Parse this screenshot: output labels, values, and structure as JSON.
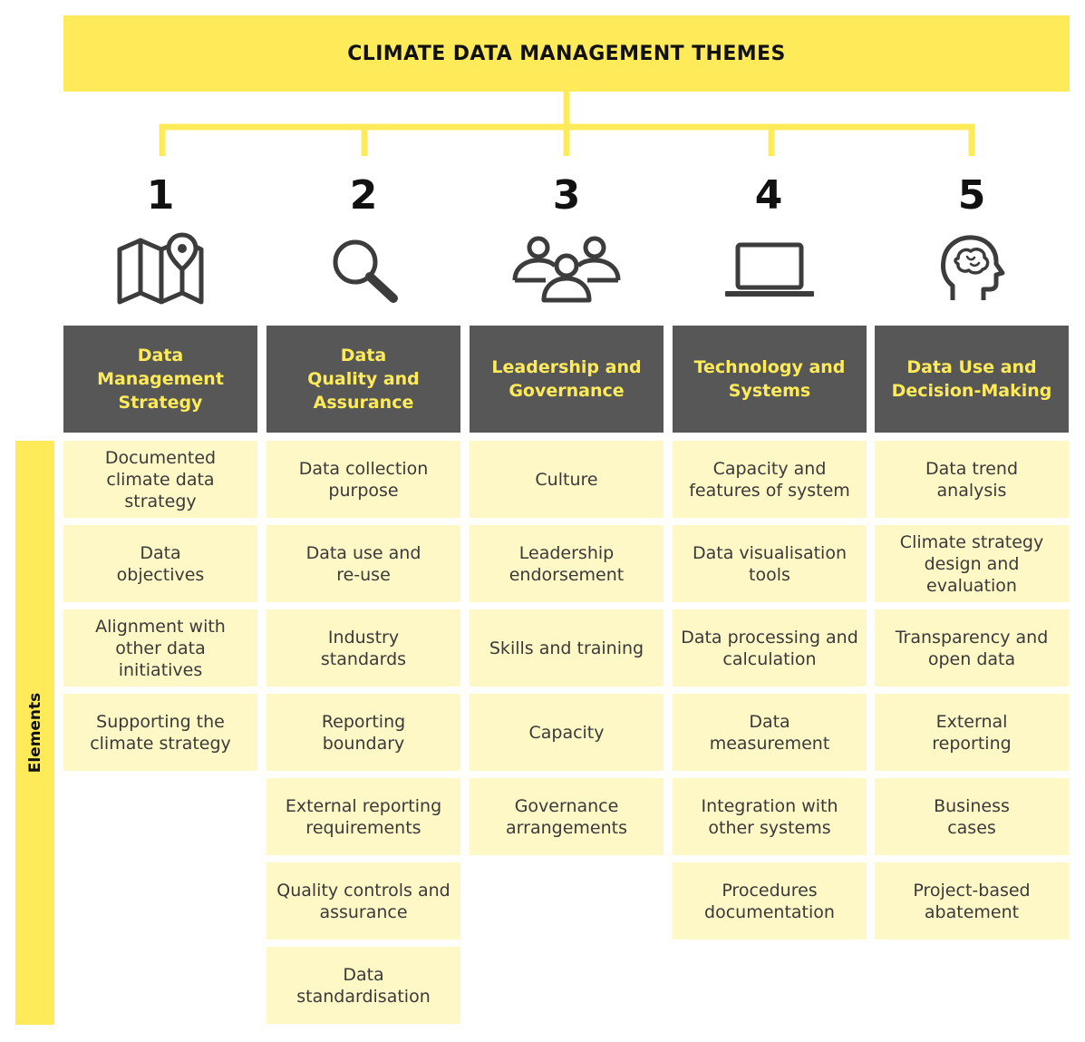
{
  "title": "CLIMATE DATA MANAGEMENT THEMES",
  "elements_label": "Elements",
  "colors": {
    "accent_yellow": "#FFEB5A",
    "header_gray": "#575757",
    "cell_cream": "#FEF7C6"
  },
  "themes": [
    {
      "number": "1",
      "icon": "map-pin-icon",
      "name": "Data Management Strategy",
      "elements": [
        "Documented climate data strategy",
        "Data objectives",
        "Alignment with other data initiatives",
        "Supporting the climate strategy"
      ]
    },
    {
      "number": "2",
      "icon": "magnifier-icon",
      "name": "Data Quality and Assurance",
      "elements": [
        "Data collection purpose",
        "Data use and re-use",
        "Industry standards",
        "Reporting boundary",
        "External reporting requirements",
        "Quality controls and assurance",
        "Data standardisation"
      ]
    },
    {
      "number": "3",
      "icon": "people-group-icon",
      "name": "Leadership and Governance",
      "elements": [
        "Culture",
        "Leadership endorsement",
        "Skills and training",
        "Capacity",
        "Governance arrangements"
      ]
    },
    {
      "number": "4",
      "icon": "laptop-icon",
      "name": "Technology and Systems",
      "elements": [
        "Capacity and features of system",
        "Data visualisation tools",
        "Data processing and calculation",
        "Data measurement",
        "Integration with other systems",
        "Procedures documentation"
      ]
    },
    {
      "number": "5",
      "icon": "head-brain-icon",
      "name": "Data Use and Decision-Making",
      "elements": [
        "Data trend analysis",
        "Climate strategy design and evaluation",
        "Transparency and open data",
        "External reporting",
        "Business cases",
        "Project-based abatement"
      ]
    }
  ]
}
